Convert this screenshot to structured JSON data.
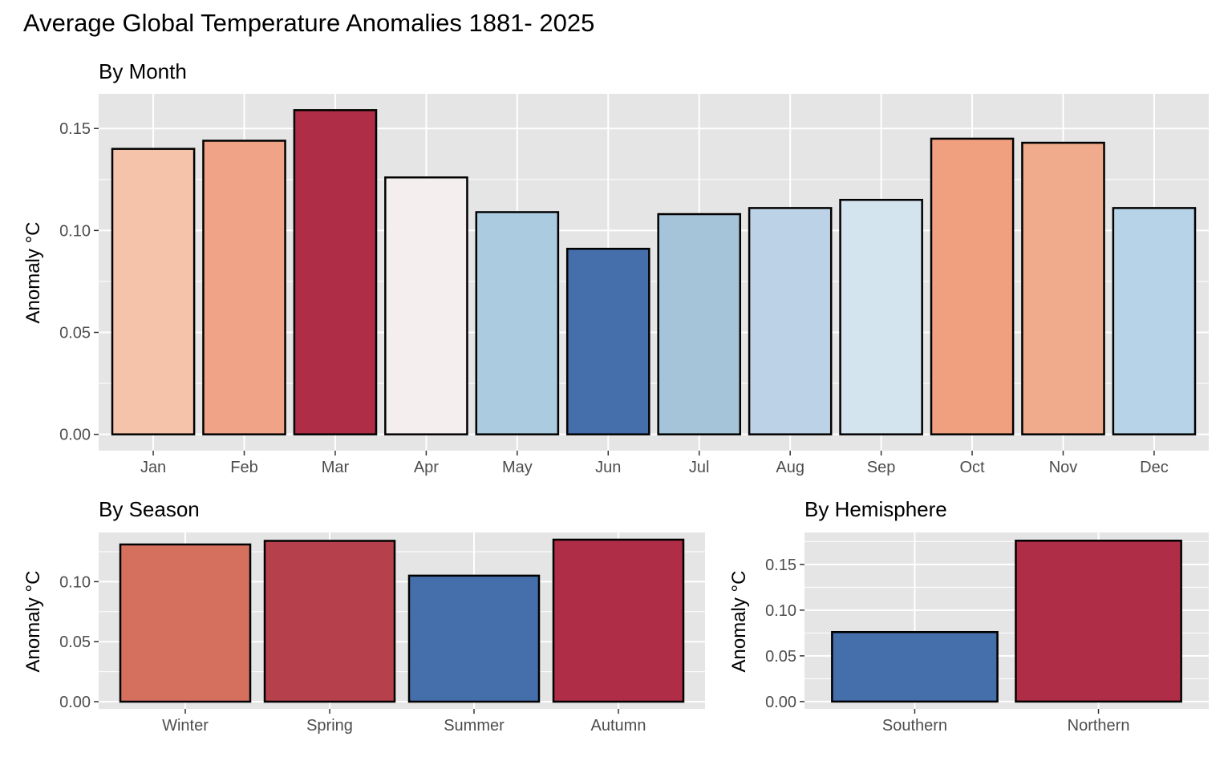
{
  "title": "Average Global Temperature Anomalies 1881- 2025",
  "chart_data": [
    {
      "type": "bar",
      "subtitle": "By Month",
      "ylabel": "Anomaly °C",
      "xlabel": "",
      "categories": [
        "Jan",
        "Feb",
        "Mar",
        "Apr",
        "May",
        "Jun",
        "Jul",
        "Aug",
        "Sep",
        "Oct",
        "Nov",
        "Dec"
      ],
      "values": [
        0.14,
        0.144,
        0.159,
        0.126,
        0.109,
        0.091,
        0.108,
        0.111,
        0.115,
        0.145,
        0.143,
        0.111
      ],
      "colors": [
        "#f4c3a9",
        "#f0a386",
        "#af2d47",
        "#f4efee",
        "#abcbe1",
        "#456fab",
        "#a5c4da",
        "#bcd3e7",
        "#d3e4ef",
        "#f0a07f",
        "#f0ab8d",
        "#b7d3e8"
      ],
      "yticks": [
        0.0,
        0.05,
        0.1,
        0.15
      ],
      "ytick_labels": [
        "0.00",
        "0.05",
        "0.10",
        "0.15"
      ],
      "ylim": [
        -0.008,
        0.167
      ],
      "grid": true
    },
    {
      "type": "bar",
      "subtitle": "By Season",
      "ylabel": "Anomaly °C",
      "xlabel": "",
      "categories": [
        "Winter",
        "Spring",
        "Summer",
        "Autumn"
      ],
      "values": [
        0.131,
        0.134,
        0.105,
        0.135
      ],
      "colors": [
        "#d5705f",
        "#b6414d",
        "#456fab",
        "#af2d47"
      ],
      "yticks": [
        0.0,
        0.05,
        0.1
      ],
      "ytick_labels": [
        "0.00",
        "0.05",
        "0.10"
      ],
      "ylim": [
        -0.006,
        0.141
      ],
      "grid": true
    },
    {
      "type": "bar",
      "subtitle": "By Hemisphere",
      "ylabel": "Anomaly °C",
      "xlabel": "",
      "categories": [
        "Southern",
        "Northern"
      ],
      "values": [
        0.076,
        0.176
      ],
      "colors": [
        "#456fab",
        "#af2d47"
      ],
      "yticks": [
        0.0,
        0.05,
        0.1,
        0.15
      ],
      "ytick_labels": [
        "0.00",
        "0.05",
        "0.10",
        "0.15"
      ],
      "ylim": [
        -0.008,
        0.185
      ],
      "grid": true
    }
  ]
}
